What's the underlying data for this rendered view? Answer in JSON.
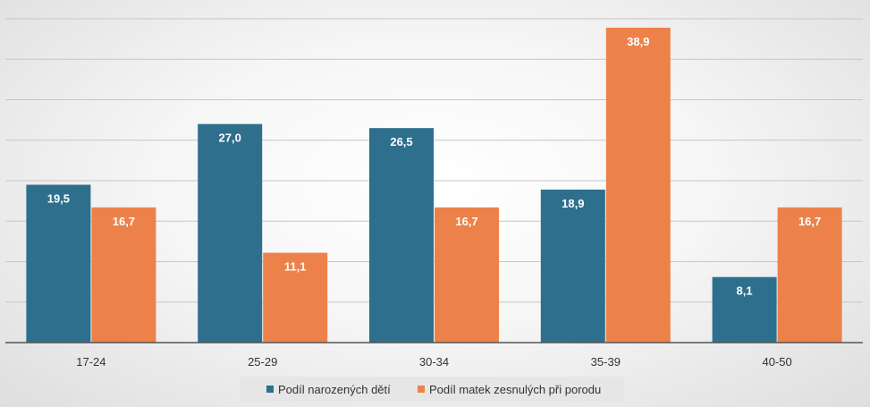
{
  "chart_data": {
    "type": "bar",
    "categories": [
      "17-24",
      "25-29",
      "30-34",
      "35-39",
      "40-50"
    ],
    "series": [
      {
        "name": "Podíl narozených dětí",
        "values": [
          19.5,
          27.0,
          26.5,
          18.9,
          8.1
        ],
        "labels": [
          "19,5",
          "27,0",
          "26,5",
          "18,9",
          "8,1"
        ],
        "color": "#2e6f8e"
      },
      {
        "name": "Podíl matek zesnulých při porodu",
        "values": [
          16.7,
          11.1,
          16.7,
          38.9,
          16.7
        ],
        "labels": [
          "16,7",
          "11,1",
          "16,7",
          "38,9",
          "16,7"
        ],
        "color": "#ec824a"
      }
    ],
    "ylim": [
      0,
      40
    ],
    "grid": true,
    "legend": "bottom-center",
    "title": "",
    "xlabel": "",
    "ylabel": ""
  }
}
